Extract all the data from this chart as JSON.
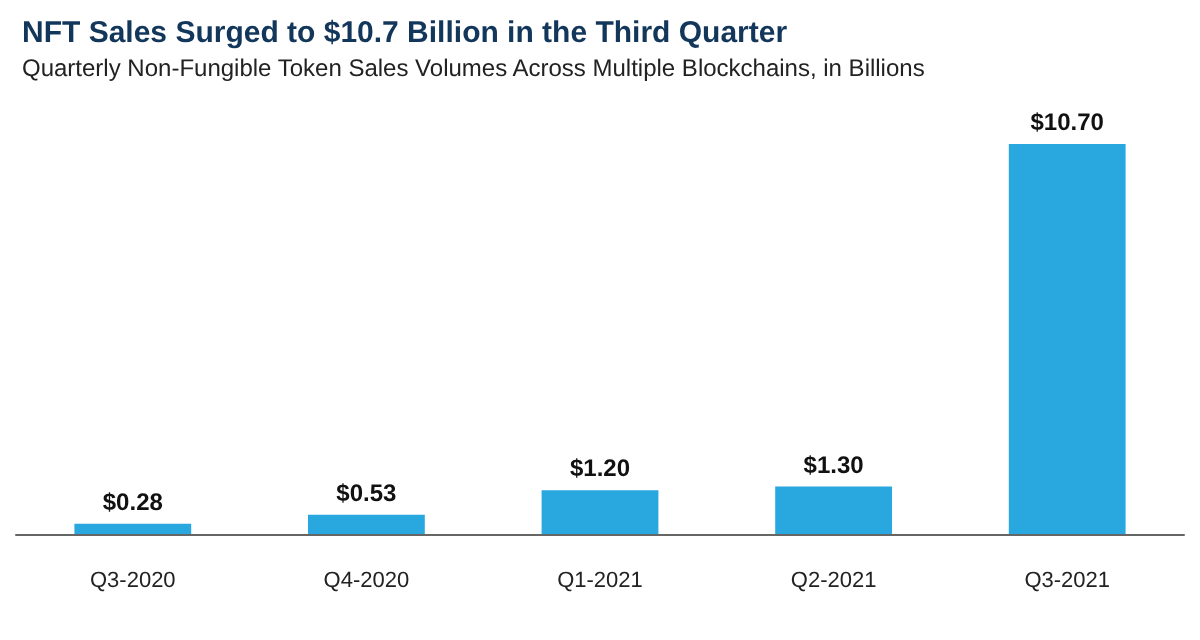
{
  "chart_data": {
    "type": "bar",
    "title": "NFT Sales Surged to $10.7 Billion in the Third Quarter",
    "subtitle": "Quarterly Non-Fungible Token Sales Volumes Across Multiple Blockchains, in Billions",
    "categories": [
      "Q3-2020",
      "Q4-2020",
      "Q1-2021",
      "Q2-2021",
      "Q3-2021"
    ],
    "values": [
      0.28,
      0.53,
      1.2,
      1.3,
      10.7
    ],
    "value_labels": [
      "$0.28",
      "$0.53",
      "$1.20",
      "$1.30",
      "$10.70"
    ],
    "color": "#29a8e0"
  }
}
